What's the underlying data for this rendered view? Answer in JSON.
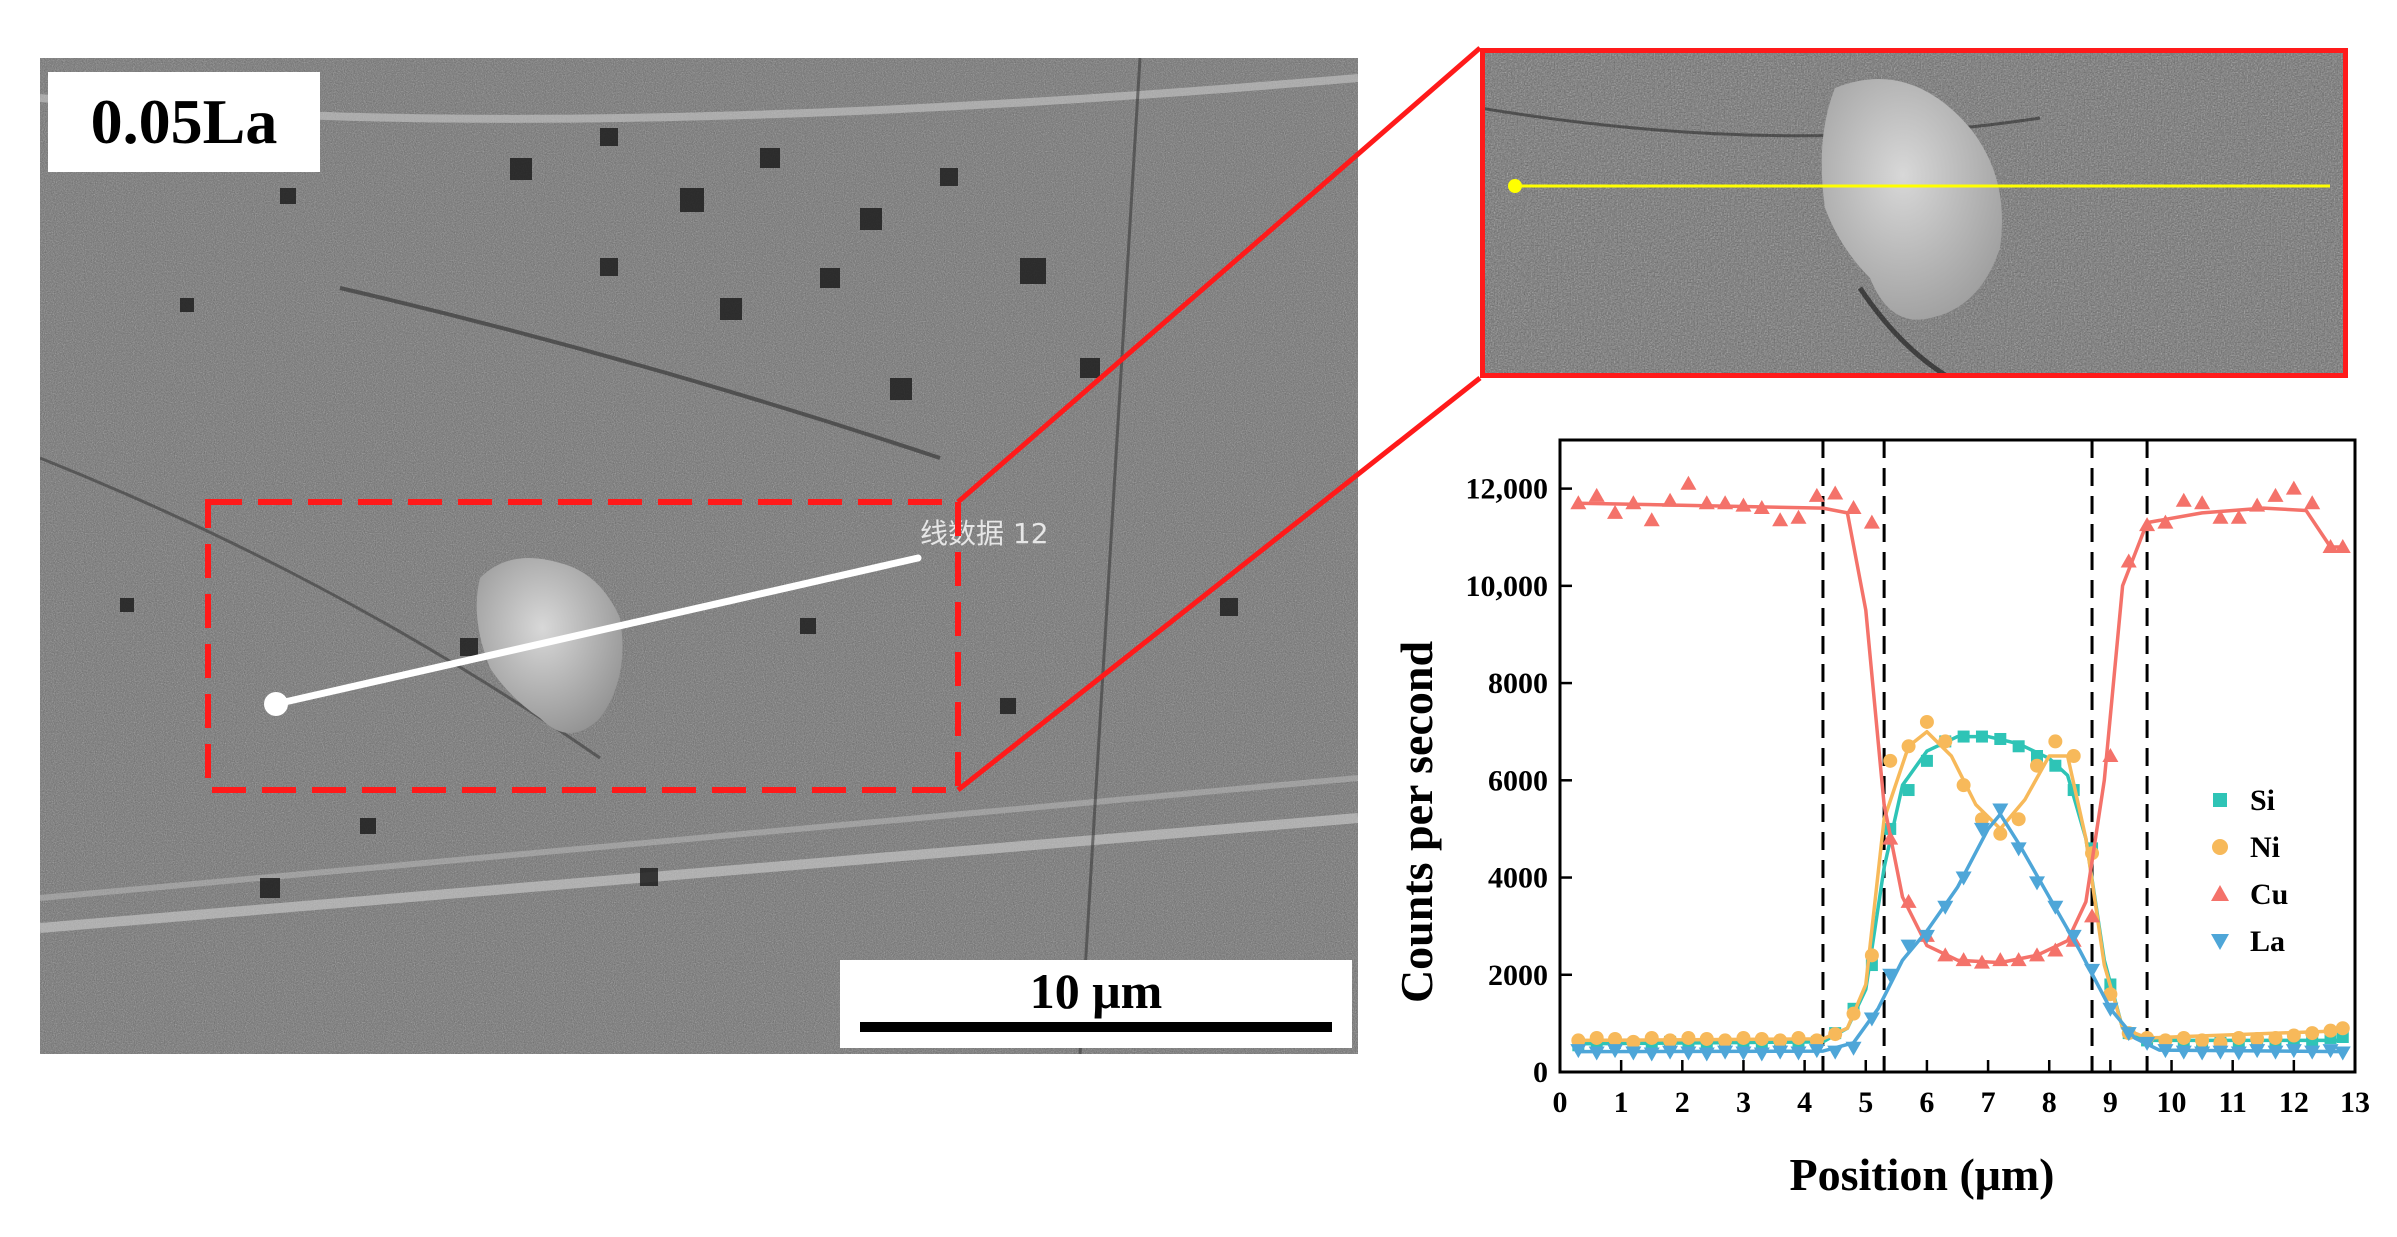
{
  "sem": {
    "sample_label": "0.05La",
    "scale_label": "10 μm",
    "line_annotation": "线数据 12"
  },
  "colors": {
    "Si": "#2ec4b6",
    "Ni": "#f7b95a",
    "Cu": "#f4726a",
    "La": "#4ea6d8",
    "highlight": "#ff1a1a",
    "scan_line": "#ffff00"
  },
  "chart_data": {
    "type": "scatter",
    "xlabel": "Position (μm)",
    "ylabel": "Counts per second",
    "xlim": [
      0,
      13
    ],
    "ylim": [
      0,
      13000
    ],
    "xticks": [
      0,
      1,
      2,
      3,
      4,
      5,
      6,
      7,
      8,
      9,
      10,
      11,
      12,
      13
    ],
    "yticks": [
      0,
      2000,
      4000,
      6000,
      8000,
      10000,
      12000
    ],
    "ytick_labels": [
      "0",
      "2000",
      "4000",
      "6000",
      "8000",
      "10,000",
      "12,000"
    ],
    "vlines": [
      4.3,
      5.3,
      8.7,
      9.6
    ],
    "legend_position": "right-middle",
    "series": [
      {
        "name": "Si",
        "marker": "square",
        "points": [
          [
            0.3,
            550
          ],
          [
            0.6,
            600
          ],
          [
            0.9,
            600
          ],
          [
            1.2,
            580
          ],
          [
            1.5,
            600
          ],
          [
            1.8,
            620
          ],
          [
            2.1,
            600
          ],
          [
            2.4,
            580
          ],
          [
            2.7,
            600
          ],
          [
            3.0,
            620
          ],
          [
            3.3,
            600
          ],
          [
            3.6,
            580
          ],
          [
            3.9,
            600
          ],
          [
            4.2,
            620
          ],
          [
            4.5,
            800
          ],
          [
            4.8,
            1300
          ],
          [
            5.1,
            2200
          ],
          [
            5.4,
            5000
          ],
          [
            5.7,
            5800
          ],
          [
            6.0,
            6400
          ],
          [
            6.3,
            6800
          ],
          [
            6.6,
            6900
          ],
          [
            6.9,
            6900
          ],
          [
            7.2,
            6850
          ],
          [
            7.5,
            6700
          ],
          [
            7.8,
            6500
          ],
          [
            8.1,
            6300
          ],
          [
            8.4,
            5800
          ],
          [
            8.7,
            4600
          ],
          [
            9.0,
            1800
          ],
          [
            9.3,
            800
          ],
          [
            9.6,
            650
          ],
          [
            9.9,
            620
          ],
          [
            10.2,
            600
          ],
          [
            10.5,
            620
          ],
          [
            10.8,
            600
          ],
          [
            11.1,
            580
          ],
          [
            11.4,
            620
          ],
          [
            11.7,
            600
          ],
          [
            12.0,
            640
          ],
          [
            12.3,
            620
          ],
          [
            12.6,
            700
          ],
          [
            12.8,
            720
          ]
        ],
        "fit": [
          [
            0.3,
            580
          ],
          [
            4.3,
            620
          ],
          [
            4.7,
            900
          ],
          [
            5.0,
            1700
          ],
          [
            5.3,
            4200
          ],
          [
            5.6,
            5900
          ],
          [
            6.0,
            6600
          ],
          [
            6.5,
            6900
          ],
          [
            7.0,
            6900
          ],
          [
            7.5,
            6750
          ],
          [
            8.0,
            6450
          ],
          [
            8.3,
            6100
          ],
          [
            8.6,
            4800
          ],
          [
            8.9,
            2300
          ],
          [
            9.2,
            900
          ],
          [
            9.6,
            650
          ],
          [
            12.8,
            650
          ]
        ]
      },
      {
        "name": "Ni",
        "marker": "circle",
        "points": [
          [
            0.3,
            650
          ],
          [
            0.6,
            700
          ],
          [
            0.9,
            680
          ],
          [
            1.2,
            620
          ],
          [
            1.5,
            700
          ],
          [
            1.8,
            650
          ],
          [
            2.1,
            700
          ],
          [
            2.4,
            680
          ],
          [
            2.7,
            650
          ],
          [
            3.0,
            700
          ],
          [
            3.3,
            680
          ],
          [
            3.6,
            650
          ],
          [
            3.9,
            700
          ],
          [
            4.2,
            650
          ],
          [
            4.5,
            780
          ],
          [
            4.8,
            1200
          ],
          [
            5.1,
            2400
          ],
          [
            5.4,
            6400
          ],
          [
            5.7,
            6700
          ],
          [
            6.0,
            7200
          ],
          [
            6.3,
            6800
          ],
          [
            6.6,
            5900
          ],
          [
            6.9,
            5200
          ],
          [
            7.2,
            4900
          ],
          [
            7.5,
            5200
          ],
          [
            7.8,
            6300
          ],
          [
            8.1,
            6800
          ],
          [
            8.4,
            6500
          ],
          [
            8.7,
            4500
          ],
          [
            9.0,
            1600
          ],
          [
            9.3,
            800
          ],
          [
            9.6,
            700
          ],
          [
            9.9,
            650
          ],
          [
            10.2,
            700
          ],
          [
            10.5,
            650
          ],
          [
            10.8,
            600
          ],
          [
            11.1,
            700
          ],
          [
            11.4,
            680
          ],
          [
            11.7,
            700
          ],
          [
            12.0,
            750
          ],
          [
            12.3,
            800
          ],
          [
            12.6,
            850
          ],
          [
            12.8,
            900
          ]
        ],
        "fit": [
          [
            0.3,
            650
          ],
          [
            4.3,
            680
          ],
          [
            4.7,
            900
          ],
          [
            5.0,
            1800
          ],
          [
            5.3,
            5200
          ],
          [
            5.7,
            6700
          ],
          [
            6.0,
            7000
          ],
          [
            6.4,
            6500
          ],
          [
            6.8,
            5500
          ],
          [
            7.2,
            5000
          ],
          [
            7.6,
            5600
          ],
          [
            8.0,
            6500
          ],
          [
            8.3,
            6500
          ],
          [
            8.6,
            4800
          ],
          [
            8.9,
            2200
          ],
          [
            9.2,
            900
          ],
          [
            9.6,
            700
          ],
          [
            12.8,
            850
          ]
        ]
      },
      {
        "name": "Cu",
        "marker": "triangle-up",
        "points": [
          [
            0.3,
            11700
          ],
          [
            0.6,
            11850
          ],
          [
            0.9,
            11500
          ],
          [
            1.2,
            11700
          ],
          [
            1.5,
            11350
          ],
          [
            1.8,
            11750
          ],
          [
            2.1,
            12100
          ],
          [
            2.4,
            11700
          ],
          [
            2.7,
            11700
          ],
          [
            3.0,
            11650
          ],
          [
            3.3,
            11600
          ],
          [
            3.6,
            11350
          ],
          [
            3.9,
            11400
          ],
          [
            4.2,
            11850
          ],
          [
            4.5,
            11900
          ],
          [
            4.8,
            11600
          ],
          [
            5.1,
            11300
          ],
          [
            5.4,
            4800
          ],
          [
            5.7,
            3500
          ],
          [
            6.0,
            2800
          ],
          [
            6.3,
            2400
          ],
          [
            6.6,
            2300
          ],
          [
            6.9,
            2250
          ],
          [
            7.2,
            2300
          ],
          [
            7.5,
            2300
          ],
          [
            7.8,
            2400
          ],
          [
            8.1,
            2500
          ],
          [
            8.4,
            2700
          ],
          [
            8.7,
            3200
          ],
          [
            9.0,
            6500
          ],
          [
            9.3,
            10500
          ],
          [
            9.6,
            11250
          ],
          [
            9.9,
            11300
          ],
          [
            10.2,
            11750
          ],
          [
            10.5,
            11700
          ],
          [
            10.8,
            11400
          ],
          [
            11.1,
            11400
          ],
          [
            11.4,
            11650
          ],
          [
            11.7,
            11850
          ],
          [
            12.0,
            12000
          ],
          [
            12.3,
            11700
          ],
          [
            12.6,
            10800
          ],
          [
            12.8,
            10800
          ]
        ],
        "fit": [
          [
            0.3,
            11700
          ],
          [
            4.3,
            11600
          ],
          [
            4.7,
            11500
          ],
          [
            5.0,
            9500
          ],
          [
            5.3,
            5500
          ],
          [
            5.6,
            3600
          ],
          [
            6.0,
            2600
          ],
          [
            6.5,
            2300
          ],
          [
            7.2,
            2250
          ],
          [
            7.8,
            2400
          ],
          [
            8.3,
            2700
          ],
          [
            8.6,
            3500
          ],
          [
            8.9,
            6000
          ],
          [
            9.2,
            10000
          ],
          [
            9.6,
            11300
          ],
          [
            10.5,
            11500
          ],
          [
            11.5,
            11600
          ],
          [
            12.2,
            11550
          ],
          [
            12.6,
            10800
          ],
          [
            12.8,
            10800
          ]
        ]
      },
      {
        "name": "La",
        "marker": "triangle-down",
        "points": [
          [
            0.3,
            450
          ],
          [
            0.6,
            400
          ],
          [
            0.9,
            450
          ],
          [
            1.2,
            400
          ],
          [
            1.5,
            380
          ],
          [
            1.8,
            420
          ],
          [
            2.1,
            400
          ],
          [
            2.4,
            380
          ],
          [
            2.7,
            420
          ],
          [
            3.0,
            400
          ],
          [
            3.3,
            380
          ],
          [
            3.6,
            420
          ],
          [
            3.9,
            400
          ],
          [
            4.2,
            450
          ],
          [
            4.5,
            420
          ],
          [
            4.8,
            500
          ],
          [
            5.1,
            1100
          ],
          [
            5.4,
            2000
          ],
          [
            5.7,
            2600
          ],
          [
            6.0,
            2800
          ],
          [
            6.3,
            3400
          ],
          [
            6.6,
            4000
          ],
          [
            6.9,
            5000
          ],
          [
            7.2,
            5400
          ],
          [
            7.5,
            4600
          ],
          [
            7.8,
            3900
          ],
          [
            8.1,
            3400
          ],
          [
            8.4,
            2800
          ],
          [
            8.7,
            2100
          ],
          [
            9.0,
            1300
          ],
          [
            9.3,
            800
          ],
          [
            9.6,
            600
          ],
          [
            9.9,
            450
          ],
          [
            10.2,
            420
          ],
          [
            10.5,
            400
          ],
          [
            10.8,
            420
          ],
          [
            11.1,
            400
          ],
          [
            11.4,
            450
          ],
          [
            11.7,
            420
          ],
          [
            12.0,
            450
          ],
          [
            12.3,
            420
          ],
          [
            12.6,
            450
          ],
          [
            12.8,
            400
          ]
        ],
        "fit": [
          [
            0.3,
            420
          ],
          [
            4.3,
            430
          ],
          [
            4.8,
            600
          ],
          [
            5.2,
            1300
          ],
          [
            5.6,
            2300
          ],
          [
            6.0,
            2900
          ],
          [
            6.5,
            3800
          ],
          [
            7.0,
            5000
          ],
          [
            7.2,
            5300
          ],
          [
            7.5,
            4700
          ],
          [
            8.0,
            3600
          ],
          [
            8.5,
            2500
          ],
          [
            9.0,
            1300
          ],
          [
            9.4,
            700
          ],
          [
            9.8,
            450
          ],
          [
            12.8,
            420
          ]
        ]
      }
    ]
  }
}
